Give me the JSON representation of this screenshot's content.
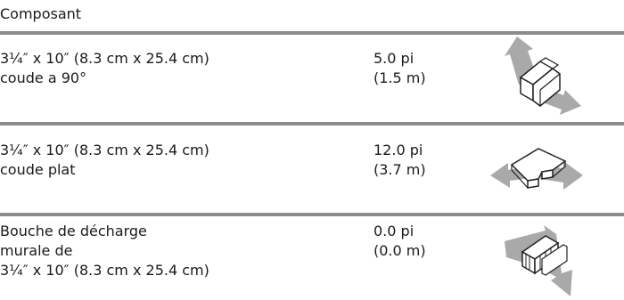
{
  "header": {
    "title": "Composant"
  },
  "rows": [
    {
      "description": [
        "3¼″ x 10″ (8.3 cm x 25.4 cm)",
        "coude a 90°"
      ],
      "length": [
        "5.0 pi",
        "(1.5 m)"
      ],
      "icon": "elbow-90-icon"
    },
    {
      "description": [
        "3¼″ x 10″ (8.3 cm x 25.4 cm)",
        "coude plat"
      ],
      "length": [
        "12.0 pi",
        "(3.7 m)"
      ],
      "icon": "flat-elbow-icon"
    },
    {
      "description": [
        "Bouche de décharge",
        "murale de",
        "3¼″ x 10″ (8.3 cm x 25.4 cm)"
      ],
      "length": [
        "0.0 pi",
        "(0.0 m)"
      ],
      "icon": "wall-cap-icon"
    }
  ]
}
